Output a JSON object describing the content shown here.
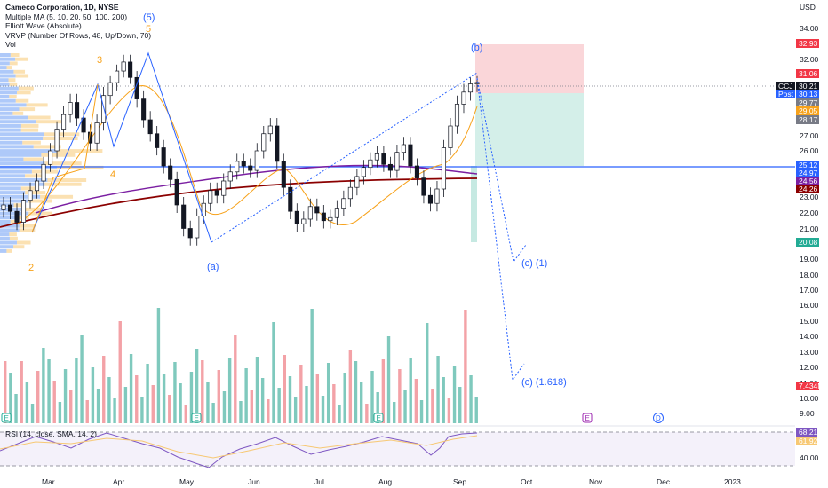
{
  "legend": {
    "title": "Cameco Corporation, 1D, NYSE",
    "line1": "Multiple MA (5, 10, 20, 50, 100, 200)",
    "line2": "Elliott Wave (Absolute)",
    "line3": "VRVP (Number Of Rows, 48, Up/Down, 70)",
    "line4": "Vol"
  },
  "price_axis": {
    "currency": "USD",
    "ticks": [
      "34.00",
      "32.00",
      "30.00",
      "28.00",
      "27.00",
      "26.00",
      "25.00",
      "24.00",
      "23.00",
      "22.00",
      "21.00",
      "20.00",
      "19.00",
      "18.00",
      "17.00",
      "16.00",
      "15.00",
      "14.00",
      "13.00",
      "12.00",
      "11.00",
      "10.00",
      "9.00"
    ]
  },
  "price_tags": [
    {
      "label": "32.93",
      "color": "#f23645"
    },
    {
      "label": "31.06",
      "color": "#f23645"
    },
    {
      "label": "30.21",
      "color": "#131722",
      "prefix": "CCJ"
    },
    {
      "label": "30.13",
      "color": "#2962ff",
      "prefix": "Post"
    },
    {
      "label": "29.77",
      "color": "#787b86"
    },
    {
      "label": "29.05",
      "color": "#f7a21b"
    },
    {
      "label": "28.17",
      "color": "#787b86"
    },
    {
      "label": "25.12",
      "color": "#2962ff"
    },
    {
      "label": "24.97",
      "color": "#2962ff"
    },
    {
      "label": "24.56",
      "color": "#7b1fa2"
    },
    {
      "label": "24.26",
      "color": "#8b0000"
    },
    {
      "label": "20.08",
      "color": "#22ab94"
    },
    {
      "label": "7.434M",
      "color": "#f23645"
    }
  ],
  "time_axis": [
    "Mar",
    "Apr",
    "May",
    "Jun",
    "Jul",
    "Aug",
    "Sep",
    "Oct",
    "Nov",
    "Dec",
    "2023"
  ],
  "waves": {
    "blue": [
      "(5)",
      "(a)",
      "(b)",
      "(c) (1)",
      "(c) (1.618)"
    ],
    "orange": [
      "5",
      "3",
      "2",
      "4"
    ]
  },
  "rsi": {
    "label": "RSI (14, close, SMA, 14, 2)",
    "value": "68.21",
    "sma": "61.92",
    "tick": "40.00"
  },
  "earnings_markers": [
    "E",
    "E",
    "E",
    "E"
  ],
  "dividend_marker": "D",
  "chart_data": {
    "type": "candlestick",
    "title": "Cameco Corporation, 1D, NYSE",
    "ylim": [
      9,
      34
    ],
    "close": [
      22.5,
      22.1,
      21.4,
      22.8,
      23.4,
      24.0,
      25.1,
      26.0,
      27.4,
      28.3,
      29.0,
      28.1,
      27.2,
      26.5,
      27.8,
      29.4,
      30.2,
      31.1,
      31.8,
      30.6,
      29.2,
      28.0,
      27.1,
      26.2,
      25.0,
      24.1,
      22.5,
      21.0,
      20.4,
      21.8,
      22.6,
      23.4,
      23.1,
      24.0,
      24.6,
      25.3,
      25.0,
      24.7,
      26.0,
      27.1,
      27.6,
      25.3,
      23.6,
      22.1,
      21.3,
      21.6,
      22.4,
      22.0,
      21.5,
      21.7,
      22.3,
      22.9,
      23.6,
      24.3,
      24.9,
      25.4,
      25.8,
      25.1,
      24.7,
      25.9,
      26.4,
      25.0,
      24.2,
      23.1,
      22.6,
      23.5,
      26.2,
      27.6,
      28.9,
      29.6,
      30.1,
      30.21
    ]
  }
}
